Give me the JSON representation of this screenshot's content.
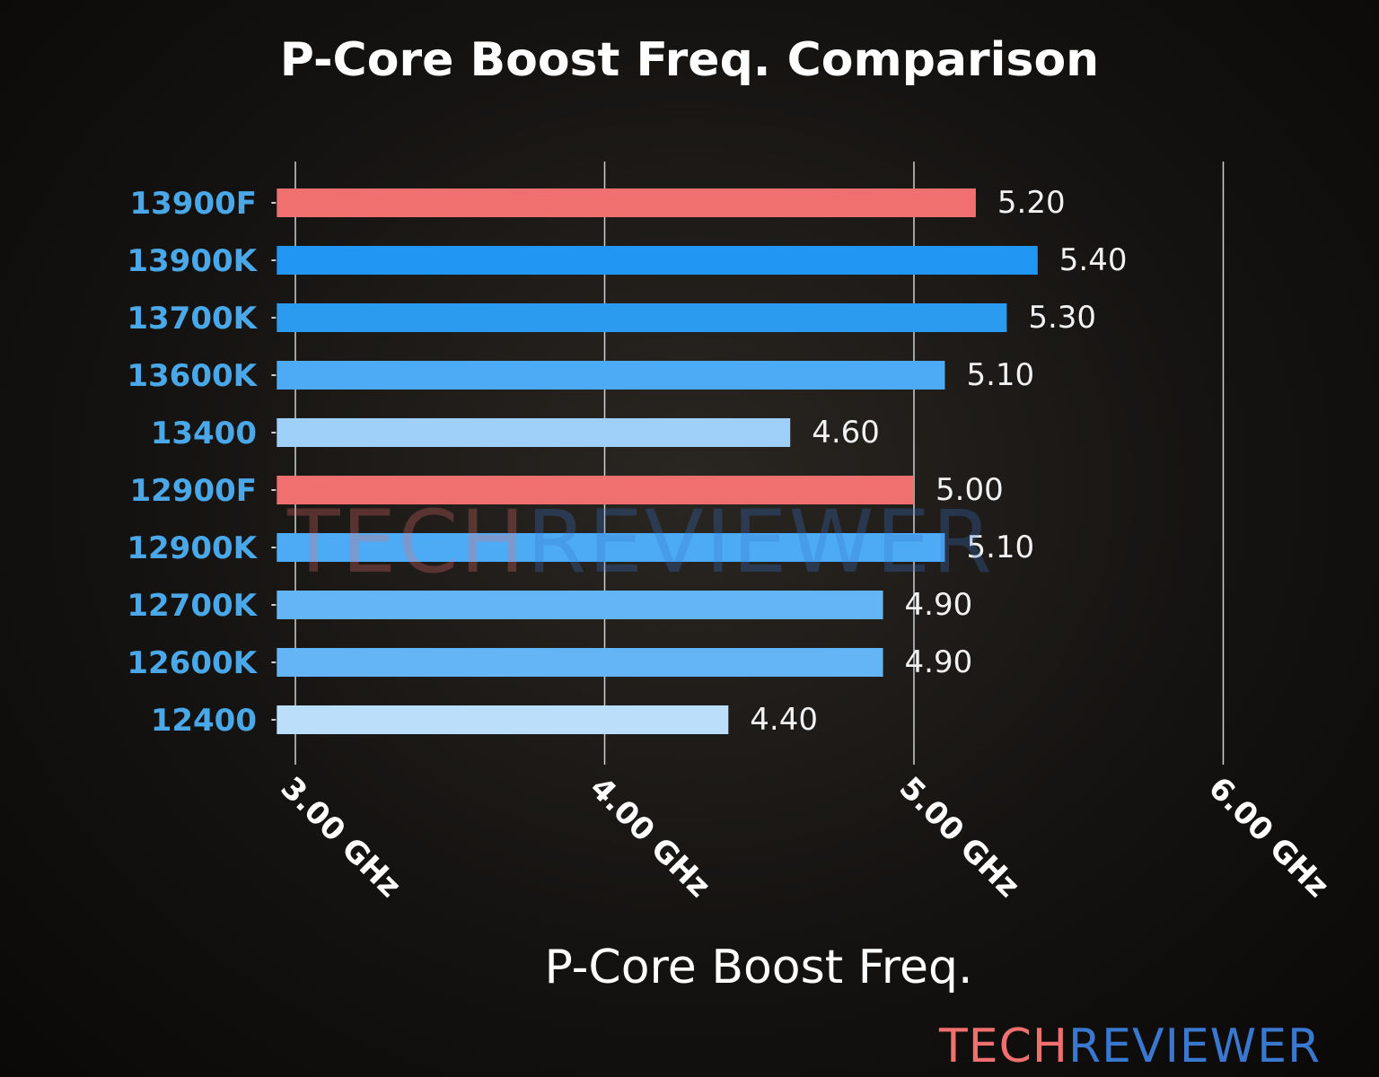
{
  "chart_data": {
    "type": "bar",
    "orientation": "horizontal",
    "title": "P-Core Boost Freq. Comparison",
    "xlabel": "P-Core Boost Freq.",
    "ylabel": "",
    "xlim": [
      2.94,
      6.0
    ],
    "xticks": [
      3,
      4,
      5,
      6
    ],
    "xtick_labels": [
      "3.00 GHz",
      "4.00 GHz",
      "5.00 GHz",
      "6.00 GHz"
    ],
    "grid": "vertical",
    "categories": [
      "13900F",
      "13900K",
      "13700K",
      "13600K",
      "13400",
      "12900F",
      "12900K",
      "12700K",
      "12600K",
      "12400"
    ],
    "values": [
      5.2,
      5.4,
      5.3,
      5.1,
      4.6,
      5.0,
      5.1,
      4.9,
      4.9,
      4.4
    ],
    "value_labels": [
      "5.20",
      "5.40",
      "5.30",
      "5.10",
      "4.60",
      "5.00",
      "5.10",
      "4.90",
      "4.90",
      "4.40"
    ],
    "colors": [
      "#f07070",
      "#2196f3",
      "#2b9bf0",
      "#4dabf5",
      "#9fd0fa",
      "#f07070",
      "#4dabf5",
      "#64b5f6",
      "#64b5f6",
      "#bbdefb"
    ]
  },
  "watermark": {
    "part1": "TECH",
    "part2": "REVIEWER",
    "color1": "#f07070",
    "color2": "#3a78d0"
  }
}
